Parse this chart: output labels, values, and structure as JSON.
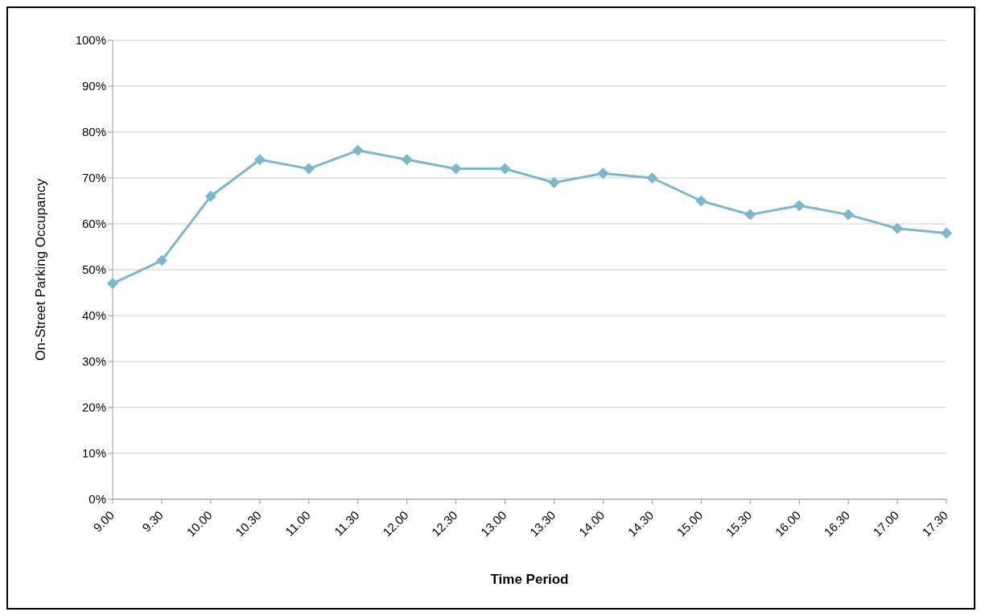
{
  "chart_data": {
    "type": "line",
    "xlabel": "Time Period",
    "ylabel": "On-Street Parking Occupancy",
    "categories": [
      "9.00",
      "9.30",
      "10.00",
      "10.30",
      "11.00",
      "11.30",
      "12.00",
      "12.30",
      "13.00",
      "13.30",
      "14.00",
      "14.30",
      "15.00",
      "15.30",
      "16.00",
      "16.30",
      "17.00",
      "17.30"
    ],
    "series": [
      {
        "color": "#7ab8cc",
        "values": [
          47,
          52,
          66,
          74,
          72,
          76,
          74,
          72,
          72,
          69,
          71,
          70,
          65,
          62,
          64,
          62,
          59,
          58
        ]
      }
    ],
    "ylim": [
      0,
      100
    ],
    "yticks": [
      {
        "value": 0,
        "label": "0%"
      },
      {
        "value": 10,
        "label": "10%"
      },
      {
        "value": 20,
        "label": "20%"
      },
      {
        "value": 30,
        "label": "30%"
      },
      {
        "value": 40,
        "label": "40%"
      },
      {
        "value": 50,
        "label": "50%"
      },
      {
        "value": 60,
        "label": "60%"
      },
      {
        "value": 70,
        "label": "70%"
      },
      {
        "value": 80,
        "label": "80%"
      },
      {
        "value": 90,
        "label": "90%"
      },
      {
        "value": 100,
        "label": "100%"
      }
    ],
    "grid": "y",
    "marker": "diamond",
    "line_style": "solid"
  }
}
